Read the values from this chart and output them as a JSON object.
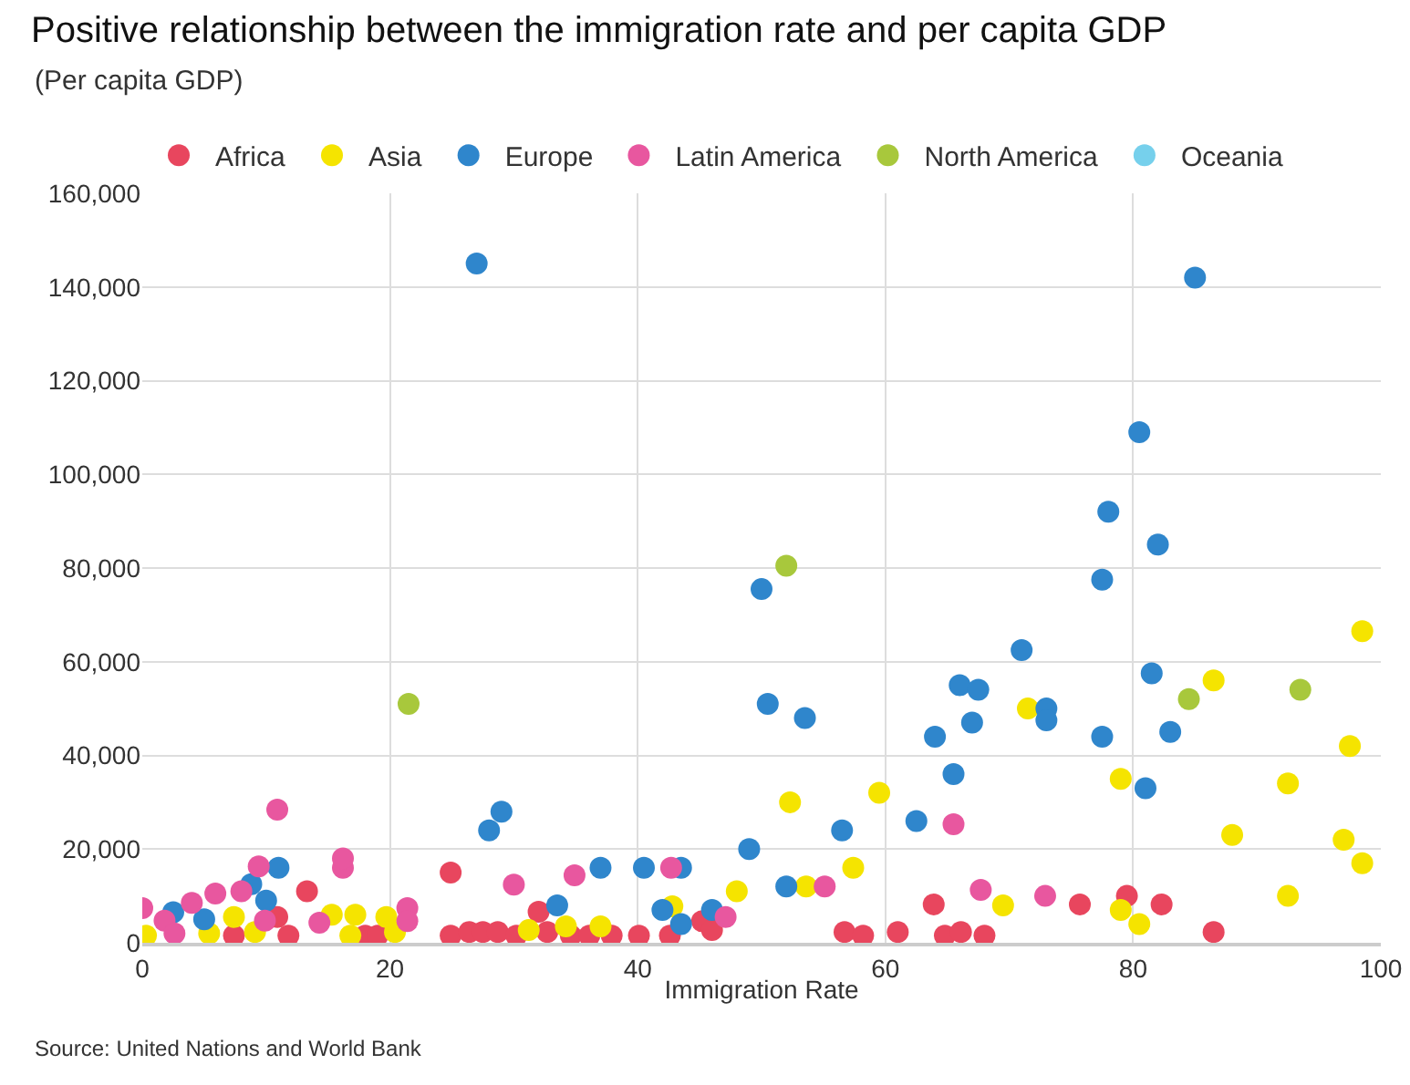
{
  "chart_data": {
    "type": "scatter",
    "title": "Positive relationship between the immigration rate and per capita GDP",
    "subtitle": "(Per capita GDP)",
    "xlabel": "Immigration Rate",
    "annotations": [
      "Source: United Nations and World Bank"
    ],
    "xlim": [
      0,
      100
    ],
    "xticks": [
      0,
      20,
      40,
      60,
      80,
      100
    ],
    "ylim": [
      0,
      160000
    ],
    "yticks": [
      {
        "value": 0,
        "label": "0"
      },
      {
        "value": 20000,
        "label": "20,000"
      },
      {
        "value": 40000,
        "label": "40,000"
      },
      {
        "value": 60000,
        "label": "60,000"
      },
      {
        "value": 80000,
        "label": "80,000"
      },
      {
        "value": 100000,
        "label": "100,000"
      },
      {
        "value": 120000,
        "label": "120,000"
      },
      {
        "value": 140000,
        "label": "140,000"
      },
      {
        "value": 160000,
        "label": "160,000"
      }
    ],
    "grid": true,
    "legend": "top",
    "marker": "circle",
    "series": [
      {
        "name": "Africa",
        "color": "#e8465e",
        "x": [
          7.4,
          11.8,
          13.3,
          10.9,
          18,
          19,
          24.9,
          24.9,
          26.4,
          27.5,
          28.7,
          30.2,
          32,
          32.7,
          34.6,
          36.1,
          37.9,
          40.1,
          42.6,
          45.2,
          46,
          56.7,
          58.2,
          61,
          63.9,
          64.8,
          66.1,
          68,
          75.7,
          79.5,
          82.3,
          86.5
        ],
        "values": [
          1500,
          1500,
          11000,
          5500,
          1500,
          1500,
          15000,
          1500,
          2300,
          2300,
          2300,
          1500,
          6600,
          2300,
          1500,
          1500,
          1500,
          1500,
          1500,
          4600,
          2700,
          2300,
          1500,
          2300,
          8200,
          1500,
          2300,
          1500,
          8200,
          10000,
          8200,
          2300
        ]
      },
      {
        "name": "Asia",
        "color": "#f5e400",
        "x": [
          98.5,
          86.5,
          71.5,
          79,
          92.5,
          52.3,
          59.5,
          88,
          97.5,
          97,
          98.5,
          57.4,
          53.6,
          48,
          92.5,
          69.5,
          79,
          80.5,
          42.8,
          34.2,
          37,
          0.3,
          7.4,
          9.1,
          15.3,
          17.2,
          19.7,
          20.4,
          31.2,
          16.8,
          5.4
        ],
        "values": [
          66500,
          56000,
          50000,
          35000,
          34000,
          30000,
          32000,
          23000,
          42000,
          22000,
          17000,
          16000,
          12000,
          11000,
          10000,
          8000,
          7000,
          4000,
          7800,
          3500,
          3500,
          1500,
          5500,
          2300,
          6000,
          6000,
          5500,
          2300,
          2700,
          1500,
          2000
        ]
      },
      {
        "name": "Europe",
        "color": "#2f86cc",
        "x": [
          27,
          85,
          80.5,
          78,
          82,
          77.5,
          50,
          71,
          81.5,
          66,
          67.5,
          50.5,
          53.5,
          73,
          73,
          67,
          83,
          64,
          77.5,
          65.5,
          81,
          29,
          62.5,
          28,
          56.5,
          49,
          11,
          37,
          40.5,
          43.5,
          52,
          8.8,
          10,
          33.5,
          42,
          46,
          43.5,
          2.5,
          5
        ],
        "values": [
          145000,
          142000,
          109000,
          92000,
          85000,
          77500,
          75500,
          62500,
          57500,
          55000,
          54000,
          51000,
          48000,
          50000,
          47500,
          47000,
          45000,
          44000,
          44000,
          36000,
          33000,
          28000,
          26000,
          24000,
          24000,
          20000,
          16000,
          16000,
          16000,
          16000,
          12000,
          12500,
          9000,
          8000,
          7000,
          7000,
          4000,
          6500,
          5000
        ]
      },
      {
        "name": "Latin America",
        "color": "#e8579f",
        "x": [
          10.9,
          16.2,
          16.2,
          9.4,
          8,
          5.9,
          4,
          0,
          1.8,
          2.6,
          9.9,
          14.3,
          21.4,
          21.4,
          30,
          34.9,
          42.7,
          47.1,
          55.1,
          65.5,
          67.7,
          72.9
        ],
        "values": [
          28400,
          16000,
          18000,
          16300,
          11000,
          10500,
          8500,
          7400,
          4700,
          2000,
          4700,
          4300,
          7400,
          4600,
          12400,
          14400,
          16000,
          5500,
          12000,
          25300,
          11300,
          10000
        ]
      },
      {
        "name": "North America",
        "color": "#a8c83c",
        "x": [
          21.5,
          52,
          84.5,
          93.5
        ],
        "values": [
          51000,
          80500,
          52000,
          54000
        ]
      },
      {
        "name": "Oceania",
        "color": "#76d0ec"
      }
    ]
  }
}
